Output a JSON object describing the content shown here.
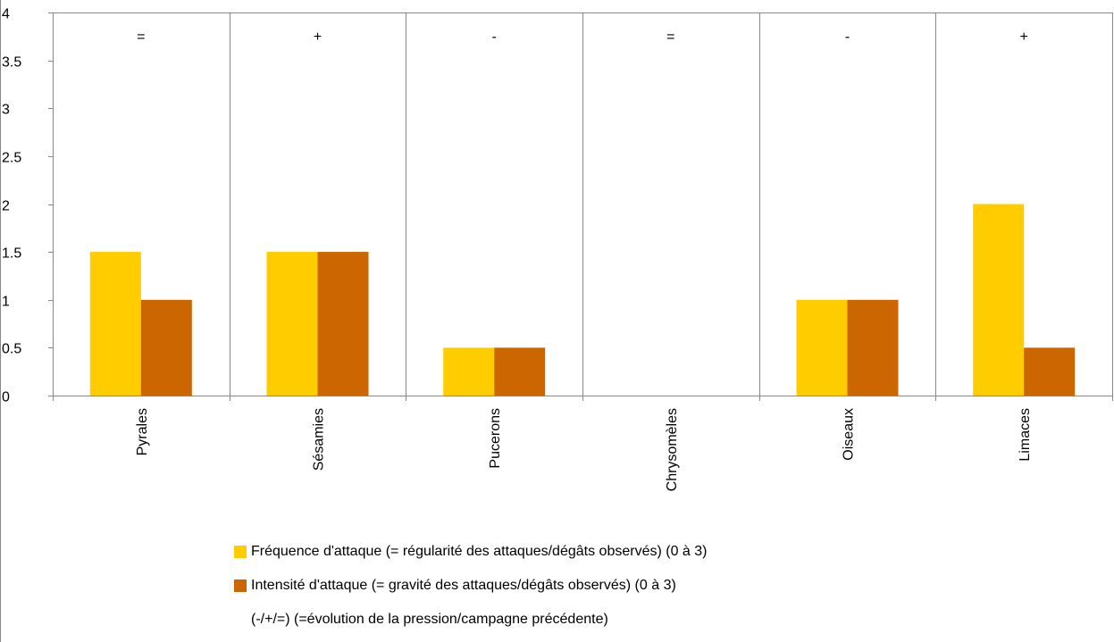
{
  "chart_data": {
    "type": "bar",
    "categories": [
      "Pyrales",
      "Sésamies",
      "Pucerons",
      "Chrysomèles",
      "Oiseaux",
      "Limaces"
    ],
    "series": [
      {
        "name": "Fréquence d'attaque (= régularité des attaques/dégâts observés) (0 à 3)",
        "color": "#FFCC00",
        "values": [
          1.5,
          1.5,
          0.5,
          0,
          1,
          2
        ]
      },
      {
        "name": "Intensité d'attaque (= gravité des attaques/dégâts observés) (0 à 3)",
        "color": "#CC6600",
        "values": [
          1,
          1.5,
          0.5,
          0,
          1,
          0.5
        ]
      }
    ],
    "evolution_markers": [
      "=",
      "+",
      "-",
      "=",
      "-",
      "+"
    ],
    "ylim": [
      0,
      4
    ],
    "yticks": [
      "0",
      "0.5",
      "1",
      "1.5",
      "2",
      "2.5",
      "3",
      "3.5",
      "4"
    ],
    "grid": "vertical separators between categories",
    "legend_position": "bottom",
    "legend_note": "(-/+/=) (=évolution de la pression/campagne précédente)"
  }
}
